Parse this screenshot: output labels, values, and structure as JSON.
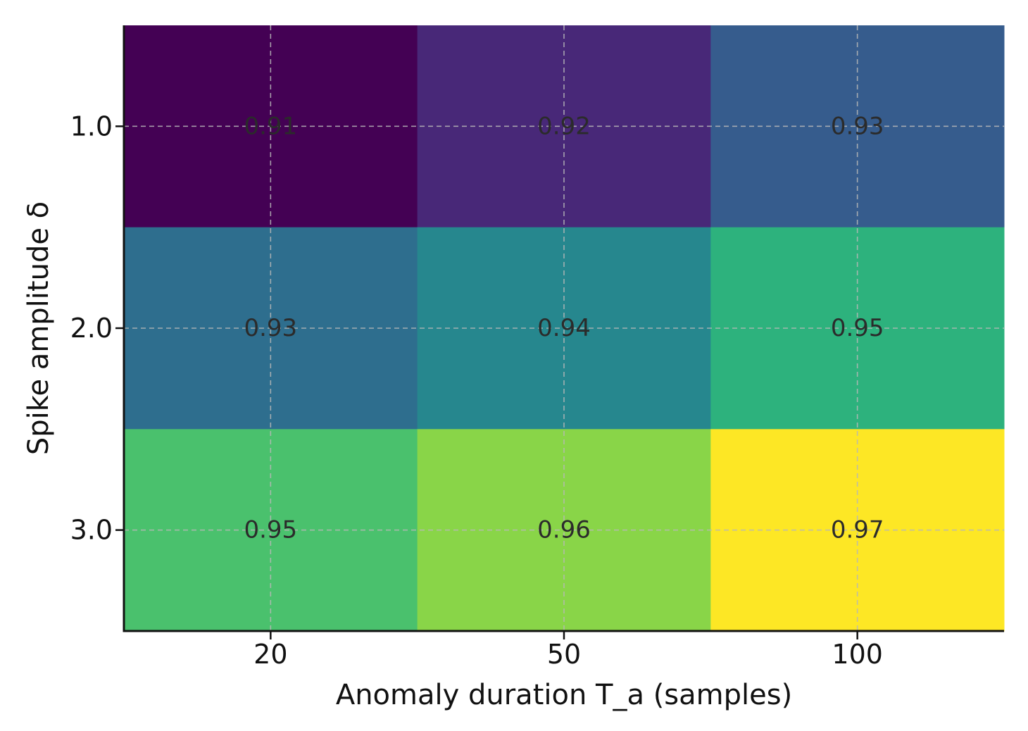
{
  "chart_data": {
    "type": "heatmap",
    "title": "",
    "xlabel": "Anomaly duration T_a (samples)",
    "ylabel": "Spike amplitude δ",
    "x_categories": [
      "20",
      "50",
      "100"
    ],
    "y_categories": [
      "1.0",
      "2.0",
      "3.0"
    ],
    "values": [
      [
        0.91,
        0.92,
        0.93
      ],
      [
        0.93,
        0.94,
        0.95
      ],
      [
        0.95,
        0.96,
        0.97
      ]
    ],
    "value_labels": [
      [
        "0.91",
        "0.92",
        "0.93"
      ],
      [
        "0.93",
        "0.94",
        "0.95"
      ],
      [
        "0.95",
        "0.96",
        "0.97"
      ]
    ],
    "cell_colors": [
      [
        "#440154",
        "#482878",
        "#365c8d"
      ],
      [
        "#2e6e8e",
        "#26878e",
        "#2db27d"
      ],
      [
        "#4ac16d",
        "#89d548",
        "#fde725"
      ]
    ],
    "colormap": "viridis",
    "grid": true
  }
}
